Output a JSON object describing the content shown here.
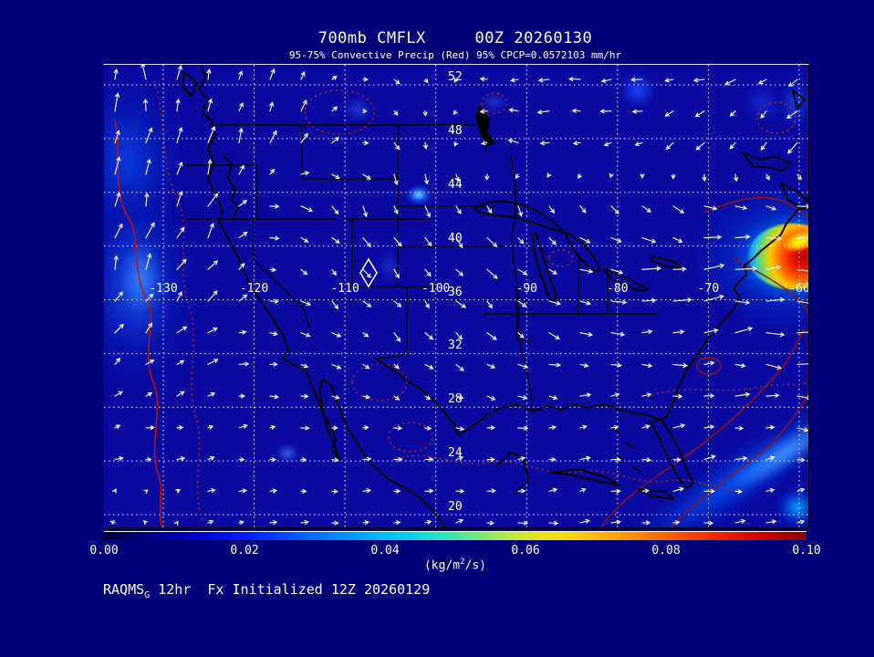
{
  "title": "700mb CMFLX     00Z 20260130",
  "subtitle": "95-75% Convective Precip (Red) 95% CPCP=0.0572103 mm/hr",
  "footer": {
    "model": "RAQMS",
    "model_subscript": "G",
    "rest": " 12hr  Fx Initialized 12Z 20260129"
  },
  "colorbar": {
    "tick_labels": [
      "0.00",
      "0.02",
      "0.04",
      "0.06",
      "0.08",
      "0.10"
    ],
    "units_prefix": "(kg/m",
    "units_sup": "2",
    "units_suffix": "/s)"
  },
  "chart_data": {
    "type": "heatmap",
    "description": "Model map of 700mb convective mass flux (filled contours, rainbow scale) with wind vectors and red convective-precip contours over North America",
    "title": "700mb CMFLX     00Z 20260130",
    "subtitle": "95-75% Convective Precip (Red) 95% CPCP=0.0572103 mm/hr",
    "field": {
      "variable": "CMFLX",
      "level": "700mb",
      "units": "kg/m2/s",
      "color_range": [
        0.0,
        0.1
      ]
    },
    "valid_time": "00Z 20260130",
    "init_time": "12Z 20260129",
    "forecast_hours": 12,
    "cpcp_annotation": "95% CPCP=0.0572103 mm/hr",
    "lat_ticks": [
      52,
      48,
      44,
      40,
      36,
      32,
      28,
      24,
      20
    ],
    "lon_ticks": [
      -130,
      -120,
      -110,
      -100,
      -90,
      -80,
      -70,
      -60
    ],
    "colorbar_ticks": [
      0.0,
      0.02,
      0.04,
      0.06,
      0.08,
      0.1
    ],
    "grid": true,
    "marker": {
      "shape": "diamond",
      "approx_lon": -107,
      "approx_lat": 38
    },
    "max_feature": {
      "approx_lon": -61,
      "approx_lat": 40,
      "peak_value_approx": 0.095,
      "description": "intense flux maximum (red/yellow core) at eastern map edge"
    },
    "shaded_regions": [
      {
        "where": "Pacific coast / offshore Northwest",
        "value_approx": "0.01-0.02"
      },
      {
        "where": "Atlantic SW-NE band off Bahamas toward map corner",
        "value_approx": "0.015-0.03"
      },
      {
        "where": "scattered small maxima (Puget Sound, upper Great Lakes, NE Canada)",
        "value_approx": "0.01-0.025"
      }
    ],
    "contour_legend": {
      "red_solid": "95% convective precip",
      "red_dotted": "75% convective precip"
    },
    "wind_field": {
      "note": "coarse 8x8 grid of arrow direction (deg CCW from east) and length (px), interpolated",
      "angles": [
        [
          95,
          80,
          60,
          -50,
          175,
          180,
          190,
          215
        ],
        [
          85,
          72,
          50,
          -65,
          170,
          185,
          -140,
          -120
        ],
        [
          80,
          65,
          -45,
          -70,
          -60,
          -40,
          -25,
          -15
        ],
        [
          70,
          55,
          -40,
          -60,
          -45,
          -15,
          0,
          0
        ],
        [
          50,
          35,
          -30,
          -45,
          -35,
          -10,
          3,
          0
        ],
        [
          25,
          15,
          -12,
          -25,
          -28,
          8,
          5,
          -4
        ],
        [
          12,
          8,
          2,
          12,
          14,
          6,
          8,
          5
        ],
        [
          160,
          12,
          6,
          14,
          10,
          10,
          12,
          8
        ]
      ],
      "lengths": [
        [
          15,
          13,
          9,
          8,
          10,
          11,
          10,
          12
        ],
        [
          17,
          15,
          11,
          9,
          9,
          10,
          10,
          12
        ],
        [
          17,
          15,
          12,
          11,
          11,
          10,
          12,
          14
        ],
        [
          15,
          13,
          10,
          11,
          12,
          14,
          20,
          22
        ],
        [
          12,
          11,
          9,
          10,
          11,
          12,
          15,
          17
        ],
        [
          8,
          8,
          8,
          8,
          9,
          10,
          12,
          13
        ],
        [
          7,
          7,
          7,
          8,
          8,
          9,
          10,
          10
        ],
        [
          6,
          6,
          7,
          8,
          8,
          8,
          9,
          8
        ]
      ]
    }
  }
}
